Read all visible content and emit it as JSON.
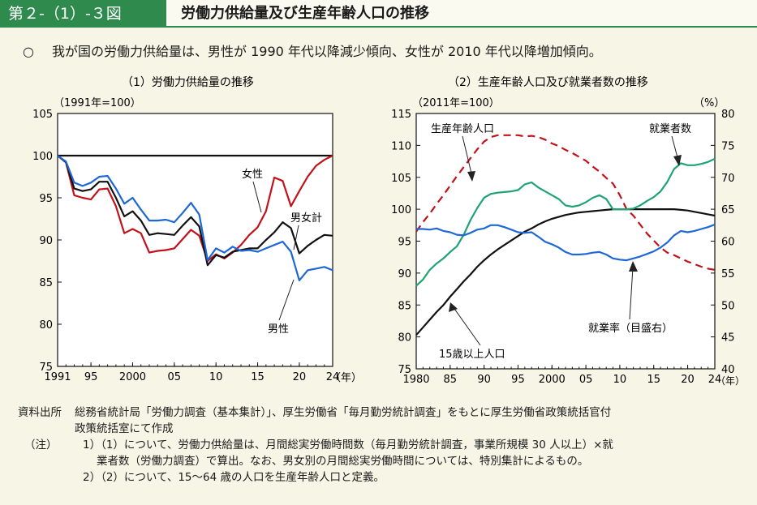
{
  "header": {
    "figure_label": "第２-（1）-３図",
    "title": "労働力供給量及び生産年齢人口の推移"
  },
  "summary": {
    "bullet": "○",
    "text": "我が国の労働力供給量は、男性が 1990 年代以降減少傾向、女性が 2010 年代以降増加傾向。"
  },
  "notes": {
    "source_label": "資料出所",
    "source_line1": "総務省統計局「労働力調査（基本集計）」、厚生労働省「毎月勤労統計調査」をもとに厚生労働省政策統括官付",
    "source_line2": "政策統括室にて作成",
    "note_label": "（注）",
    "note1_line1": "1）（1）について、労働力供給量は、月間総実労働時間数（毎月勤労統計調査，事業所規模 30 人以上）×就",
    "note1_line2": "業者数（労働力調査）で算出。なお、男女別の月間総実労働時間については、特別集計によるもの。",
    "note2": "2）（2）について、15～64 歳の人口を生産年齢人口と定義。"
  },
  "chart_data": [
    {
      "type": "line",
      "title": "（1）労働力供給量の推移",
      "ylabel": "（1991年=100）",
      "xunit": "（年）",
      "ylim": [
        75,
        105
      ],
      "yticks": [
        75,
        80,
        85,
        90,
        95,
        100,
        105
      ],
      "xlim": [
        1991,
        2024
      ],
      "xticks": [
        {
          "value": 1991,
          "label": "1991"
        },
        {
          "value": 1995,
          "label": "95"
        },
        {
          "value": 2000,
          "label": "2000"
        },
        {
          "value": 2005,
          "label": "05"
        },
        {
          "value": 2010,
          "label": "10"
        },
        {
          "value": 2015,
          "label": "15"
        },
        {
          "value": 2020,
          "label": "20"
        },
        {
          "value": 2024,
          "label": "24"
        }
      ],
      "x": [
        1991,
        1992,
        1993,
        1994,
        1995,
        1996,
        1997,
        1998,
        1999,
        2000,
        2001,
        2002,
        2003,
        2004,
        2005,
        2006,
        2007,
        2008,
        2009,
        2010,
        2011,
        2012,
        2013,
        2014,
        2015,
        2016,
        2017,
        2018,
        2019,
        2020,
        2021,
        2022,
        2023,
        2024
      ],
      "baseline": 100,
      "series": [
        {
          "name": "女性",
          "color": "#c0121b",
          "values": [
            100,
            99.2,
            95.3,
            95.0,
            94.8,
            96.0,
            96.1,
            94.0,
            90.8,
            91.3,
            90.8,
            88.5,
            88.7,
            88.8,
            89.0,
            90.1,
            91.2,
            90.5,
            87.5,
            88.3,
            87.8,
            88.5,
            89.4,
            90.6,
            91.5,
            93.4,
            97.4,
            97.0,
            94.0,
            95.8,
            97.5,
            98.8,
            99.5,
            100.0
          ],
          "label": "女性"
        },
        {
          "name": "男女計",
          "color": "#111111",
          "values": [
            100,
            99.2,
            96.1,
            95.8,
            96.0,
            96.9,
            96.9,
            95.0,
            92.8,
            93.4,
            92.3,
            90.6,
            90.8,
            90.7,
            90.6,
            91.7,
            92.7,
            91.6,
            87.0,
            88.2,
            87.9,
            88.6,
            88.8,
            89.0,
            89.0,
            90.0,
            90.9,
            92.1,
            91.4,
            88.4,
            89.3,
            90.0,
            90.6,
            90.5
          ],
          "label": "男女計"
        },
        {
          "name": "男性",
          "color": "#1e67d6",
          "values": [
            100,
            99.3,
            96.8,
            96.4,
            96.8,
            97.5,
            97.6,
            96.1,
            94.3,
            95.0,
            93.6,
            92.3,
            92.3,
            92.4,
            92.1,
            93.2,
            94.4,
            93.0,
            87.6,
            89.0,
            88.5,
            89.2,
            88.7,
            88.8,
            88.6,
            89.0,
            89.4,
            89.8,
            88.6,
            85.2,
            86.4,
            86.6,
            86.8,
            86.4
          ],
          "label": "男性"
        }
      ]
    },
    {
      "type": "line",
      "title": "（2）生産年齢人口及び就業者数の推移",
      "ylabel_left": "（2011年=100）",
      "ylabel_right": "（%）",
      "xunit": "（年）",
      "ylim_left": [
        75,
        115
      ],
      "yticks_left": [
        75,
        80,
        85,
        90,
        95,
        100,
        105,
        110,
        115
      ],
      "ylim_right": [
        40,
        80
      ],
      "yticks_right": [
        40,
        45,
        50,
        55,
        60,
        65,
        70,
        75,
        80
      ],
      "xlim": [
        1980,
        2024
      ],
      "xticks": [
        {
          "value": 1980,
          "label": "1980"
        },
        {
          "value": 1985,
          "label": "85"
        },
        {
          "value": 1990,
          "label": "90"
        },
        {
          "value": 1995,
          "label": "95"
        },
        {
          "value": 2000,
          "label": "2000"
        },
        {
          "value": 2005,
          "label": "05"
        },
        {
          "value": 2010,
          "label": "10"
        },
        {
          "value": 2015,
          "label": "15"
        },
        {
          "value": 2020,
          "label": "20"
        },
        {
          "value": 2024,
          "label": "24"
        }
      ],
      "x": [
        1980,
        1981,
        1982,
        1983,
        1984,
        1985,
        1986,
        1987,
        1988,
        1989,
        1990,
        1991,
        1992,
        1993,
        1994,
        1995,
        1996,
        1997,
        1998,
        1999,
        2000,
        2001,
        2002,
        2003,
        2004,
        2005,
        2006,
        2007,
        2008,
        2009,
        2010,
        2011,
        2012,
        2013,
        2014,
        2015,
        2016,
        2017,
        2018,
        2019,
        2020,
        2021,
        2022,
        2023,
        2024
      ],
      "series": [
        {
          "name": "生産年齢人口",
          "color": "#c0121b",
          "dashed": true,
          "axis": "left",
          "values": [
            96.5,
            98.0,
            99.3,
            100.8,
            102.2,
            103.7,
            105.2,
            106.6,
            108.0,
            109.4,
            110.6,
            111.3,
            111.6,
            111.6,
            111.6,
            111.6,
            111.4,
            111.5,
            111.3,
            110.9,
            110.3,
            109.9,
            109.3,
            108.8,
            108.2,
            107.6,
            106.7,
            105.9,
            104.9,
            104.0,
            102.2,
            100.0,
            99.0,
            97.6,
            96.2,
            95.1,
            94.0,
            93.2,
            92.8,
            92.3,
            91.8,
            91.4,
            91.0,
            90.7,
            90.5
          ],
          "label": "生産年齢人口"
        },
        {
          "name": "15歳以上人口",
          "color": "#111111",
          "axis": "left",
          "values": [
            80.3,
            81.5,
            82.7,
            83.9,
            85.0,
            86.3,
            87.5,
            88.7,
            89.8,
            91.0,
            92.0,
            92.9,
            93.7,
            94.4,
            95.1,
            95.8,
            96.5,
            97.0,
            97.6,
            98.1,
            98.5,
            98.8,
            99.1,
            99.3,
            99.5,
            99.6,
            99.7,
            99.8,
            99.9,
            100.0,
            100.0,
            100.0,
            100.0,
            100.0,
            100.0,
            100.0,
            100.0,
            100.0,
            100.0,
            99.9,
            99.8,
            99.6,
            99.4,
            99.2,
            99.0
          ],
          "label": "15歳以上人口"
        },
        {
          "name": "就業者数",
          "color": "#1fa375",
          "axis": "left",
          "values": [
            88.0,
            89.0,
            90.5,
            91.5,
            92.3,
            93.3,
            94.2,
            96.0,
            98.3,
            100.2,
            101.8,
            102.4,
            102.6,
            102.7,
            102.8,
            103.0,
            103.9,
            104.2,
            103.4,
            102.8,
            102.2,
            101.6,
            100.6,
            100.4,
            100.6,
            101.1,
            101.8,
            102.2,
            101.6,
            100.0,
            100.0,
            100.0,
            100.1,
            100.6,
            101.3,
            101.9,
            102.8,
            104.3,
            106.3,
            107.2,
            106.9,
            106.9,
            107.1,
            107.4,
            107.9
          ],
          "label": "就業者数"
        },
        {
          "name": "就業率（目盛右）",
          "color": "#1e67d6",
          "axis": "right",
          "values": [
            61.9,
            61.9,
            61.8,
            62.0,
            61.6,
            61.4,
            61.0,
            60.9,
            61.3,
            61.8,
            62.0,
            62.5,
            62.5,
            62.2,
            61.8,
            61.4,
            61.3,
            61.4,
            60.7,
            59.9,
            59.5,
            59.0,
            58.3,
            57.9,
            57.9,
            58.0,
            58.2,
            58.3,
            57.9,
            57.3,
            57.1,
            57.0,
            57.3,
            57.6,
            58.0,
            58.4,
            59.0,
            59.8,
            60.9,
            61.6,
            61.4,
            61.6,
            61.9,
            62.2,
            62.6
          ],
          "label": "就業率（目盛右）"
        }
      ]
    }
  ]
}
